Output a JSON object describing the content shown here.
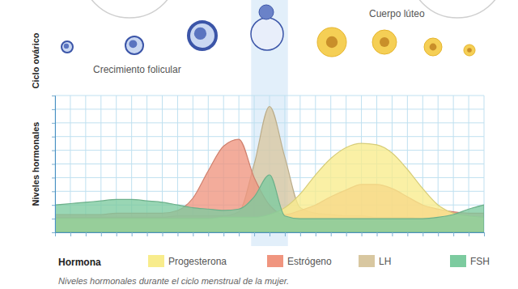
{
  "chart_data": {
    "type": "area",
    "ylabel": "Niveles hormonales",
    "caption": "Niveles hormonales durante el ciclo menstrual de la mujer.",
    "legend_title": "Hormona",
    "legend": "bottom",
    "grid": true,
    "tick_labels": false,
    "x": [
      0,
      1,
      2,
      3,
      4,
      5,
      6,
      7,
      8,
      9,
      10,
      11,
      12,
      13,
      14,
      15,
      16,
      17,
      18,
      19,
      20,
      21,
      22,
      23,
      24,
      25,
      26,
      27,
      28
    ],
    "xlim": [
      0,
      28
    ],
    "ylim": [
      0,
      10
    ],
    "xticks": [
      0,
      1,
      2,
      3,
      4,
      5,
      6,
      7,
      8,
      9,
      10,
      11,
      12,
      13,
      14,
      15,
      16,
      17,
      18,
      19,
      20,
      21,
      22,
      23,
      24,
      25,
      26,
      27,
      28
    ],
    "yticks": [
      0,
      1,
      2,
      3,
      4,
      5,
      6,
      7,
      8,
      9,
      10
    ],
    "band_x": [
      12.8,
      15.2
    ],
    "series": [
      {
        "name": "Progesterona",
        "color": "#f8ec8c",
        "values": [
          1.0,
          1.0,
          1.0,
          1.0,
          1.0,
          1.0,
          1.0,
          1.0,
          1.0,
          1.0,
          1.0,
          1.1,
          1.1,
          1.1,
          1.3,
          1.8,
          2.8,
          4.2,
          5.4,
          6.2,
          6.5,
          6.4,
          5.8,
          4.6,
          3.2,
          2.0,
          1.4,
          1.2,
          1.1
        ]
      },
      {
        "name": "Estrógeno",
        "color": "#f0957f",
        "values": [
          1.3,
          1.3,
          1.3,
          1.3,
          1.4,
          1.4,
          1.4,
          1.4,
          1.6,
          2.5,
          4.5,
          6.3,
          6.8,
          4.0,
          2.0,
          1.3,
          1.6,
          2.0,
          2.6,
          3.1,
          3.5,
          3.5,
          3.2,
          2.6,
          2.0,
          1.7,
          1.5,
          1.4,
          1.4
        ]
      },
      {
        "name": "LH",
        "color": "#d8c7a0",
        "values": [
          1.1,
          1.1,
          1.1,
          1.1,
          1.1,
          1.1,
          1.1,
          1.1,
          1.2,
          1.2,
          1.2,
          1.2,
          1.5,
          5.0,
          9.2,
          5.5,
          1.8,
          1.4,
          1.3,
          1.2,
          1.2,
          1.1,
          1.1,
          1.1,
          1.0,
          1.0,
          1.0,
          1.0,
          1.0
        ]
      },
      {
        "name": "FSH",
        "color": "#7ccb9f",
        "values": [
          2.0,
          2.1,
          2.2,
          2.3,
          2.4,
          2.4,
          2.3,
          2.2,
          2.0,
          1.8,
          1.7,
          1.6,
          1.7,
          2.6,
          4.2,
          1.2,
          1.0,
          1.0,
          1.0,
          1.0,
          1.0,
          1.0,
          1.0,
          1.0,
          1.0,
          1.1,
          1.3,
          1.7,
          2.0
        ]
      }
    ]
  },
  "ovarian_cycle": {
    "title": "Ciclo ovárico",
    "labels": [
      "Crecimiento folicular",
      "Cuerpo lúteo"
    ]
  }
}
